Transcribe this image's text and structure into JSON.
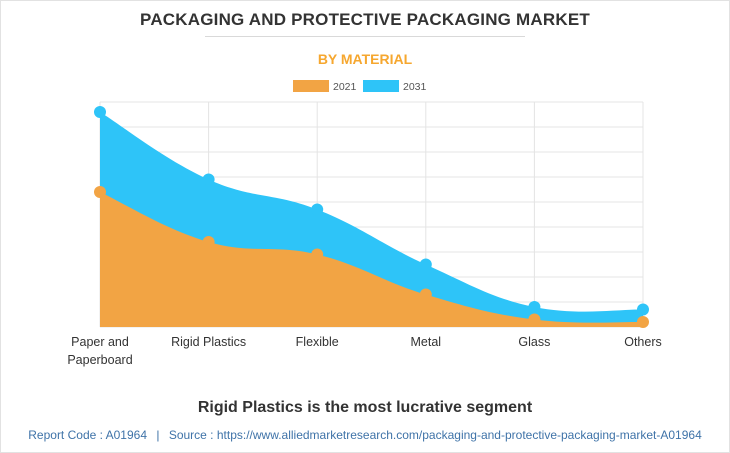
{
  "header": {
    "title": "PACKAGING AND PROTECTIVE PACKAGING MARKET",
    "subtitle": "BY MATERIAL"
  },
  "caption": "Rigid Plastics is the most lucrative segment",
  "footer": {
    "report_code_label": "Report Code : A01964",
    "separator": "|",
    "source_label": "Source : https://www.alliedmarketresearch.com/packaging-and-protective-packaging-market-A01964"
  },
  "colors": {
    "series_2021": "#f2a444",
    "series_2031": "#2ec4f8",
    "grid": "#e4e4e4",
    "axis_text": "#333333",
    "subtitle": "#f6a72f",
    "footer_link": "#3f73a8"
  },
  "chart_data": {
    "type": "area",
    "categories": [
      "Paper and Paperboard",
      "Rigid Plastics",
      "Flexible",
      "Metal",
      "Glass",
      "Others"
    ],
    "series": [
      {
        "name": "2021",
        "values": [
          54,
          34,
          29,
          13,
          3,
          2
        ]
      },
      {
        "name": "2031",
        "values": [
          86,
          59,
          47,
          25,
          8,
          7
        ]
      }
    ],
    "ylim": [
      0,
      90
    ],
    "ylabel": "",
    "xlabel": "",
    "y_axis_labels_visible": false,
    "grid": true,
    "legend_position": "top-center"
  }
}
